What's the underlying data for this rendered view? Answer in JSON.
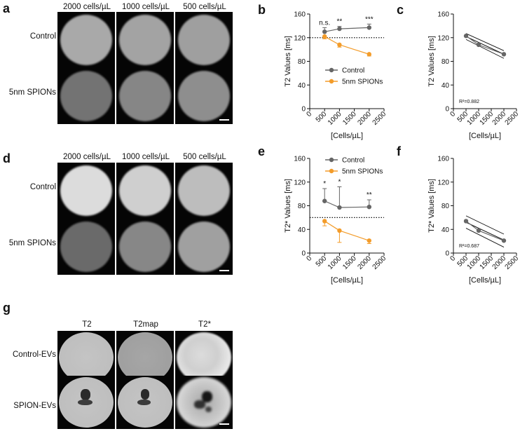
{
  "panel_letters": {
    "a": "a",
    "b": "b",
    "c": "c",
    "d": "d",
    "e": "e",
    "f": "f",
    "g": "g"
  },
  "panel_a": {
    "columns": [
      "2000 cells/µL",
      "1000 cells/µL",
      "500 cells/µL"
    ],
    "rows": [
      "Control",
      "5nm SPIONs"
    ]
  },
  "panel_d": {
    "columns": [
      "2000 cells/µL",
      "1000 cells/µL",
      "500 cells/µL"
    ],
    "rows": [
      "Control",
      "5nm SPIONs"
    ]
  },
  "panel_g": {
    "columns": [
      "T2",
      "T2map",
      "T2*"
    ],
    "rows": [
      "Control-EVs",
      "SPION-EVs"
    ]
  },
  "chart_data": [
    {
      "panel": "b",
      "type": "line",
      "xlabel": "[Cells/µL]",
      "ylabel": "T2 Values [ms]",
      "xlim": [
        0,
        2500
      ],
      "ylim": [
        0,
        160
      ],
      "xticks": [
        0,
        500,
        1000,
        1500,
        2000,
        2500
      ],
      "yticks": [
        0,
        40,
        80,
        120,
        160
      ],
      "reference_line": 120,
      "legend_position": "center",
      "series": [
        {
          "name": "Control",
          "color": "#666666",
          "x": [
            500,
            1000,
            2000
          ],
          "y": [
            130,
            135,
            137
          ],
          "err": [
            7,
            4,
            6
          ]
        },
        {
          "name": "5nm SPIONs",
          "color": "#f39c2a",
          "x": [
            500,
            1000,
            2000
          ],
          "y": [
            122,
            108,
            92
          ],
          "err": [
            4,
            4,
            3
          ]
        }
      ],
      "annotations": [
        {
          "x": 500,
          "text": "n.s."
        },
        {
          "x": 1000,
          "text": "**"
        },
        {
          "x": 2000,
          "text": "***"
        }
      ]
    },
    {
      "panel": "c",
      "type": "line",
      "xlabel": "[Cells/µL]",
      "ylabel": "T2 Values [ms]",
      "xlim": [
        0,
        2500
      ],
      "ylim": [
        0,
        160
      ],
      "xticks": [
        0,
        500,
        1000,
        1500,
        2000,
        2500
      ],
      "yticks": [
        0,
        40,
        80,
        120,
        160
      ],
      "r2_label": "R²=0.882",
      "series": [
        {
          "color": "#666666",
          "x": [
            500,
            1000,
            2000
          ],
          "y": [
            123,
            108,
            92
          ]
        }
      ],
      "fit": {
        "x": [
          500,
          2000
        ],
        "y": [
          122,
          92
        ],
        "upper": [
          127,
          98
        ],
        "lower": [
          117,
          85
        ]
      }
    },
    {
      "panel": "e",
      "type": "line",
      "xlabel": "[Cells/µL]",
      "ylabel": "T2* Values [ms]",
      "xlim": [
        0,
        2500
      ],
      "ylim": [
        0,
        160
      ],
      "xticks": [
        0,
        500,
        1000,
        1500,
        2000,
        2500
      ],
      "yticks": [
        0,
        40,
        80,
        120,
        160
      ],
      "reference_line": 60,
      "legend_position": "top-right",
      "series": [
        {
          "name": "Control",
          "color": "#666666",
          "x": [
            500,
            1000,
            2000
          ],
          "y": [
            88,
            77,
            78
          ],
          "err": [
            21,
            35,
            12
          ]
        },
        {
          "name": "5nm SPIONs",
          "color": "#f39c2a",
          "x": [
            500,
            1000,
            2000
          ],
          "y": [
            54,
            38,
            21
          ],
          "err": [
            8,
            20,
            5
          ]
        }
      ],
      "annotations": [
        {
          "x": 500,
          "text": "*"
        },
        {
          "x": 1000,
          "text": "*"
        },
        {
          "x": 2000,
          "text": "**"
        }
      ]
    },
    {
      "panel": "f",
      "type": "line",
      "xlabel": "[Cells/µL]",
      "ylabel": "T2* Values [ms]",
      "xlim": [
        0,
        2500
      ],
      "ylim": [
        0,
        160
      ],
      "xticks": [
        0,
        500,
        1000,
        1500,
        2000,
        2500
      ],
      "yticks": [
        0,
        40,
        80,
        120,
        160
      ],
      "r2_label": "R²=0.687",
      "series": [
        {
          "color": "#666666",
          "x": [
            500,
            1000,
            2000
          ],
          "y": [
            54,
            38,
            21
          ]
        }
      ],
      "fit": {
        "x": [
          500,
          2000
        ],
        "y": [
          52,
          22
        ],
        "upper": [
          63,
          32
        ],
        "lower": [
          42,
          10
        ]
      }
    }
  ]
}
